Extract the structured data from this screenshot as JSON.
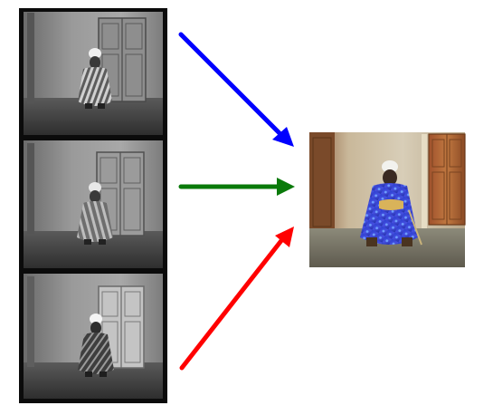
{
  "diagram": {
    "type": "channel-composition",
    "description_visible_text": "",
    "plates": [
      {
        "channel": "blue",
        "arrow_color": "#0000ff"
      },
      {
        "channel": "green",
        "arrow_color": "#0a7a0a"
      },
      {
        "channel": "red",
        "arrow_color": "#ff0000"
      }
    ],
    "film_frame_color": "#0b0b0b",
    "result_tint": "#4a3a7a"
  }
}
